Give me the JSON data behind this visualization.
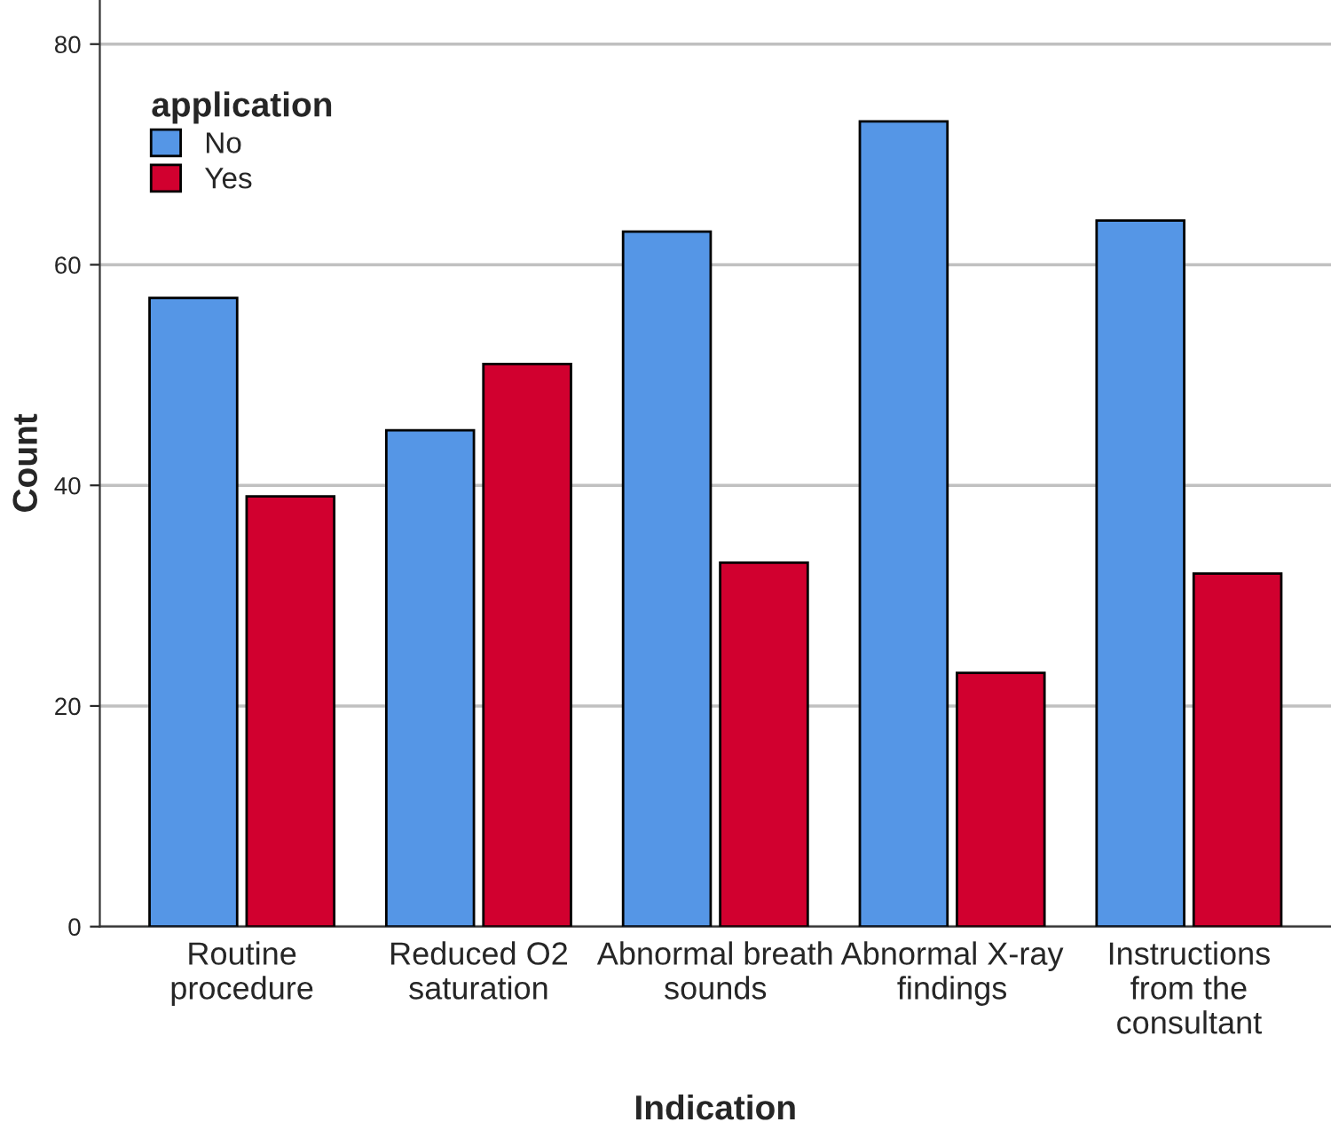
{
  "chart_data": {
    "type": "bar",
    "xlabel": "Indication",
    "ylabel": "Count",
    "legend_title": "application",
    "categories": [
      "Routine procedure",
      "Reduced O2 saturation",
      "Abnormal breath sounds",
      "Abnormal X-ray findings",
      "Instructions from the consultant"
    ],
    "series": [
      {
        "name": "No",
        "color": "#5596e6",
        "values": [
          57,
          45,
          63,
          73,
          64
        ]
      },
      {
        "name": "Yes",
        "color": "#d1002f",
        "values": [
          39,
          51,
          33,
          23,
          32
        ]
      }
    ],
    "ylim": [
      0,
      84
    ],
    "yticks": [
      0,
      20,
      40,
      60,
      80
    ],
    "grid": "y",
    "legend": "top left"
  }
}
